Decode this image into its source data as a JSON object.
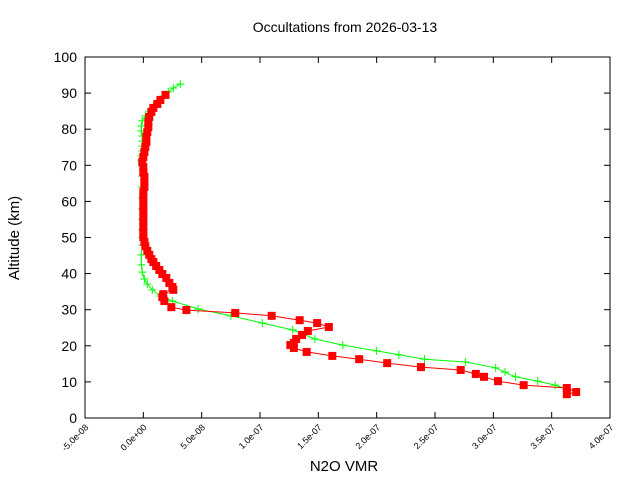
{
  "chart_data": {
    "type": "line",
    "title": "Occultations from 2026-03-13",
    "xlabel": "N2O VMR",
    "ylabel": "Altitude (km)",
    "xlim": [
      -5e-08,
      4e-07
    ],
    "ylim": [
      0,
      100
    ],
    "xticks": [
      -5e-08,
      0,
      5e-08,
      1e-07,
      1.5e-07,
      2e-07,
      2.5e-07,
      3e-07,
      3.5e-07,
      4e-07
    ],
    "xtick_labels": [
      "-5.0e-08",
      "0.0e+00",
      "5.0e-08",
      "1.0e-07",
      "1.5e-07",
      "2.0e-07",
      "2.5e-07",
      "3.0e-07",
      "3.5e-07",
      "4.0e-07"
    ],
    "yticks": [
      0,
      10,
      20,
      30,
      40,
      50,
      60,
      70,
      80,
      90,
      100
    ],
    "ytick_labels": [
      "0",
      "10",
      "20",
      "30",
      "40",
      "50",
      "60",
      "70",
      "80",
      "90",
      "100"
    ],
    "grid": false,
    "series": [
      {
        "color": "#00ff00",
        "marker": "plus",
        "points": [
          [
            3.17e-08,
            92.5
          ],
          [
            2.57e-08,
            91.4
          ],
          [
            2.14e-08,
            90.3
          ],
          [
            1.71e-08,
            89.2
          ],
          [
            1.29e-08,
            87.8
          ],
          [
            8.6e-09,
            86.4
          ],
          [
            5.1e-09,
            85.0
          ],
          [
            1.7e-09,
            83.7
          ],
          [
            -9e-10,
            82.3
          ],
          [
            -1.7e-09,
            80.9
          ],
          [
            -1.7e-09,
            79.5
          ],
          [
            -9e-10,
            78.1
          ],
          [
            -9e-10,
            76.7
          ],
          [
            -9e-10,
            75.3
          ],
          [
            -9e-10,
            74.0
          ],
          [
            -1.7e-09,
            72.6
          ],
          [
            -1.7e-09,
            71.2
          ],
          [
            -9e-10,
            69.8
          ],
          [
            -9e-10,
            67.0
          ],
          [
            -9e-10,
            64.0
          ],
          [
            -9e-10,
            61.0
          ],
          [
            -9e-10,
            58.0
          ],
          [
            -9e-10,
            55.0
          ],
          [
            -9e-10,
            52.0
          ],
          [
            -9e-10,
            50.0
          ],
          [
            -9e-10,
            47.9
          ],
          [
            -1.7e-09,
            45.2
          ],
          [
            -1.7e-09,
            42.4
          ],
          [
            -9e-10,
            40.4
          ],
          [
            9e-10,
            38.5
          ],
          [
            3.4e-09,
            37.1
          ],
          [
            7.7e-09,
            35.5
          ],
          [
            1.46e-08,
            33.8
          ],
          [
            2.49e-08,
            32.4
          ],
          [
            4.7e-08,
            30.2
          ],
          [
            7.5e-08,
            28.3
          ],
          [
            1.02e-07,
            26.3
          ],
          [
            1.28e-07,
            24.4
          ],
          [
            1.47e-07,
            21.9
          ],
          [
            1.71e-07,
            20.2
          ],
          [
            2e-07,
            18.6
          ],
          [
            2.19e-07,
            17.5
          ],
          [
            2.41e-07,
            16.3
          ],
          [
            2.76e-07,
            15.5
          ],
          [
            3.02e-07,
            13.9
          ],
          [
            3.1e-07,
            12.7
          ],
          [
            3.19e-07,
            11.4
          ],
          [
            3.38e-07,
            10.2
          ],
          [
            3.53e-07,
            9.1
          ],
          [
            3.63e-07,
            8.0
          ],
          [
            3.66e-07,
            6.9
          ]
        ]
      },
      {
        "color": "#ff0000",
        "marker": "square",
        "points": [
          [
            1.9e-08,
            89.5
          ],
          [
            1.46e-08,
            88.1
          ],
          [
            1.2e-08,
            87.0
          ],
          [
            8.6e-09,
            85.9
          ],
          [
            6.9e-09,
            84.8
          ],
          [
            5.1e-09,
            83.4
          ],
          [
            4.3e-09,
            82.0
          ],
          [
            4.3e-09,
            80.6
          ],
          [
            3.4e-09,
            79.2
          ],
          [
            2.6e-09,
            77.8
          ],
          [
            2.6e-09,
            76.5
          ],
          [
            1.7e-09,
            75.1
          ],
          [
            9e-10,
            73.7
          ],
          [
            0,
            72.3
          ],
          [
            -9e-10,
            70.9
          ],
          [
            0,
            69.5
          ],
          [
            0,
            68.1
          ],
          [
            9e-10,
            66.8
          ],
          [
            9e-10,
            65.4
          ],
          [
            9e-10,
            64.0
          ],
          [
            0,
            62.6
          ],
          [
            0,
            61.2
          ],
          [
            0,
            59.8
          ],
          [
            0,
            58.4
          ],
          [
            0,
            57.1
          ],
          [
            0,
            55.7
          ],
          [
            0,
            54.3
          ],
          [
            0,
            52.9
          ],
          [
            0,
            51.5
          ],
          [
            0,
            50.1
          ],
          [
            9e-10,
            48.8
          ],
          [
            1.7e-09,
            47.6
          ],
          [
            3.4e-09,
            46.3
          ],
          [
            5.1e-09,
            45.2
          ],
          [
            6.9e-09,
            44.0
          ],
          [
            8.6e-09,
            43.2
          ],
          [
            1.1e-08,
            42.1
          ],
          [
            1.37e-08,
            41.0
          ],
          [
            1.63e-08,
            39.9
          ],
          [
            1.97e-08,
            38.8
          ],
          [
            2.23e-08,
            37.4
          ],
          [
            2.49e-08,
            36.3
          ],
          [
            2.57e-08,
            35.5
          ],
          [
            1.71e-08,
            34.3
          ],
          [
            1.63e-08,
            33.5
          ],
          [
            1.8e-08,
            32.4
          ],
          [
            2.4e-08,
            30.7
          ],
          [
            3.69e-08,
            29.9
          ],
          [
            7.88e-08,
            29.1
          ],
          [
            1.1e-07,
            28.3
          ],
          [
            1.34e-07,
            27.1
          ],
          [
            1.49e-07,
            26.3
          ],
          [
            1.59e-07,
            25.2
          ],
          [
            1.41e-07,
            24.1
          ],
          [
            1.36e-07,
            23.0
          ],
          [
            1.31e-07,
            21.9
          ],
          [
            1.29e-07,
            20.8
          ],
          [
            1.26e-07,
            20.2
          ],
          [
            1.29e-07,
            19.4
          ],
          [
            1.4e-07,
            18.3
          ],
          [
            1.62e-07,
            17.2
          ],
          [
            1.85e-07,
            16.3
          ],
          [
            2.09e-07,
            15.2
          ],
          [
            2.38e-07,
            14.1
          ],
          [
            2.72e-07,
            13.3
          ],
          [
            2.85e-07,
            12.2
          ],
          [
            2.92e-07,
            11.4
          ],
          [
            3.04e-07,
            10.2
          ],
          [
            3.26e-07,
            9.1
          ],
          [
            3.63e-07,
            8.3
          ],
          [
            3.71e-07,
            7.2
          ],
          [
            3.63e-07,
            6.6
          ]
        ]
      }
    ]
  }
}
